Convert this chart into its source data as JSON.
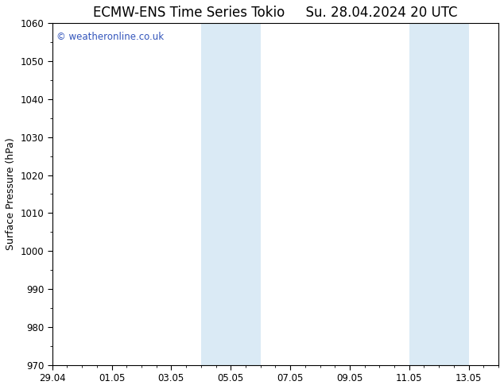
{
  "title": "ECMW-ENS Time Series Tokio     Su. 28.04.2024 20 UTC",
  "ylabel": "Surface Pressure (hPa)",
  "ylim": [
    970,
    1060
  ],
  "yticks": [
    970,
    980,
    990,
    1000,
    1010,
    1020,
    1030,
    1040,
    1050,
    1060
  ],
  "xlim": [
    0,
    15
  ],
  "xtick_labels": [
    "29.04",
    "01.05",
    "03.05",
    "05.05",
    "07.05",
    "09.05",
    "11.05",
    "13.05"
  ],
  "xtick_positions": [
    0,
    2,
    4,
    6,
    8,
    10,
    12,
    14
  ],
  "shaded_bands": [
    {
      "x_start": 5,
      "x_end": 7
    },
    {
      "x_start": 12,
      "x_end": 14
    }
  ],
  "background_color": "#ffffff",
  "plot_bg_color": "#ffffff",
  "shaded_color": "#daeaf5",
  "watermark_text": "© weatheronline.co.uk",
  "watermark_color": "#3355bb",
  "title_fontsize": 12,
  "axis_label_fontsize": 9,
  "tick_fontsize": 8.5,
  "watermark_fontsize": 8.5
}
